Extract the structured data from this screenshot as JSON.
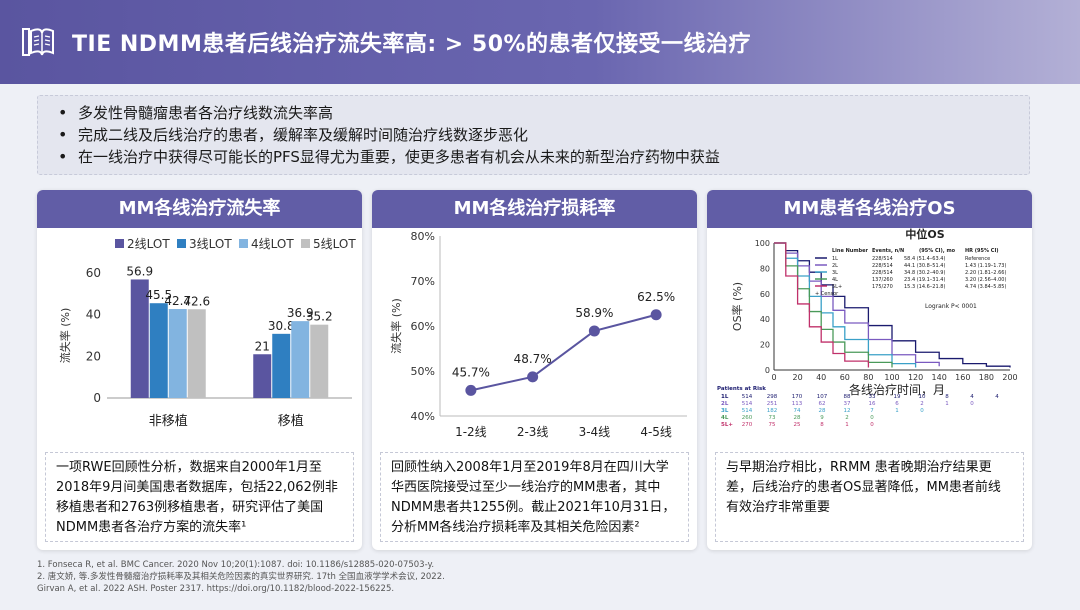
{
  "header": {
    "title": "TIE NDMM患者后线治疗流失率高: > 50%的患者仅接受一线治疗"
  },
  "bullets": [
    "多发性骨髓瘤患者各治疗线数流失率高",
    "完成二线及后线治疗的患者，缓解率及缓解时间随治疗线数逐步恶化",
    "在一线治疗中获得尽可能长的PFS显得尤为重要，使更多患者有机会从未来的新型治疗药物中获益"
  ],
  "cards": [
    {
      "title": "MM各线治疗流失率",
      "text": "一项RWE回顾性分析，数据来自2000年1月至2018年9月间美国患者数据库，包括22,062例非移植患者和2763例移植患者，研究评估了美国NDMM患者各治疗方案的流失率¹"
    },
    {
      "title": "MM各线治疗损耗率",
      "text": "回顾性纳入2008年1月至2019年8月在四川大学华西医院接受过至少一线治疗的MM患者，其中NDMM患者共1255例。截止2021年10月31日，分析MM各线治疗损耗率及其相关危险因素²"
    },
    {
      "title": "MM患者各线治疗OS",
      "text": "与早期治疗相比，RRMM 患者晚期治疗结果更差，后线治疗的患者OS显著降低，MM患者前线有效治疗非常重要"
    }
  ],
  "chart_data": [
    {
      "type": "bar",
      "title": "MM各线治疗流失率",
      "ylabel": "流失率 (%)",
      "ylim": [
        0,
        60
      ],
      "yticks": [
        "0",
        "20",
        "40",
        "60"
      ],
      "categories": [
        "非移植",
        "移植"
      ],
      "series": [
        {
          "name": "2线LOT",
          "color": "#5a55a0",
          "values": [
            56.9,
            21
          ]
        },
        {
          "name": "3线LOT",
          "color": "#2f7fc1",
          "values": [
            45.5,
            30.8
          ]
        },
        {
          "name": "4线LOT",
          "color": "#82b4e0",
          "values": [
            42.7,
            36.9
          ]
        },
        {
          "name": "5线LOT",
          "color": "#c0c0c0",
          "values": [
            42.6,
            35.2
          ]
        }
      ],
      "labels": [
        [
          "56.9",
          "45.5",
          "42.7",
          "42.6"
        ],
        [
          "21",
          "30.8",
          "36.9",
          "35.2"
        ]
      ]
    },
    {
      "type": "line",
      "title": "MM各线治疗损耗率",
      "ylabel": "流失率 (%)",
      "ylim": [
        40,
        80
      ],
      "yticks": [
        "40%",
        "50%",
        "60%",
        "70%",
        "80%"
      ],
      "categories": [
        "1-2线",
        "2-3线",
        "3-4线",
        "4-5线"
      ],
      "values": [
        45.7,
        48.7,
        58.9,
        62.5
      ],
      "labels": [
        "45.7%",
        "48.7%",
        "58.9%",
        "62.5%"
      ],
      "color": "#5a55a0"
    },
    {
      "type": "line",
      "title": "中位OS",
      "ylabel": "OS率 (%)",
      "xlabel": "各线治疗时间，月",
      "xlim": [
        0,
        200
      ],
      "ylim": [
        0,
        100
      ],
      "xticks": [
        "0",
        "20",
        "40",
        "60",
        "80",
        "100",
        "120",
        "140",
        "160",
        "180",
        "200"
      ],
      "yticks": [
        "0",
        "20",
        "40",
        "60",
        "80",
        "100"
      ],
      "logrank": "Logrank P< 0001",
      "legend_header": [
        "Line Number",
        "Events, n/N",
        "(95% CI), mo",
        "HR (95% CI)"
      ],
      "censor_label": "+ Censor",
      "risk_header": "Patients at Risk",
      "series": [
        {
          "name": "1L",
          "color": "#1a1a6e",
          "events": "228/514",
          "median": "58.4 (51.4–63.4)",
          "hr": "Reference",
          "x": [
            0,
            10,
            20,
            30,
            40,
            50,
            60,
            80,
            100,
            120,
            140,
            160,
            180,
            200
          ],
          "y": [
            100,
            94,
            86,
            77,
            67,
            58,
            49,
            35,
            23,
            14,
            9,
            5,
            3,
            2
          ],
          "risk": [
            "514",
            "298",
            "170",
            "107",
            "88",
            "33",
            "19",
            "10",
            "8",
            "4",
            "4"
          ]
        },
        {
          "name": "2L",
          "color": "#7a5ac0",
          "events": "228/514",
          "median": "44.1 (30.8–51.4)",
          "hr": "1.43 (1.19–1.73)",
          "x": [
            0,
            10,
            20,
            30,
            40,
            50,
            60,
            80,
            100,
            120,
            140
          ],
          "y": [
            100,
            92,
            82,
            70,
            58,
            47,
            37,
            24,
            12,
            6,
            3
          ],
          "risk": [
            "514",
            "251",
            "113",
            "62",
            "37",
            "16",
            "6",
            "2",
            "1",
            "0",
            ""
          ]
        },
        {
          "name": "3L",
          "color": "#3aa0c8",
          "events": "228/514",
          "median": "34.8 (30.2–40.9)",
          "hr": "2.20 (1.81–2.66)",
          "x": [
            0,
            10,
            20,
            30,
            40,
            50,
            60,
            80,
            100,
            120
          ],
          "y": [
            100,
            88,
            74,
            58,
            45,
            34,
            24,
            12,
            5,
            2
          ],
          "risk": [
            "514",
            "182",
            "74",
            "28",
            "12",
            "7",
            "1",
            "0",
            "",
            "",
            ""
          ]
        },
        {
          "name": "4L",
          "color": "#4a9a5a",
          "events": "137/260",
          "median": "23.4 (19.1–31.4)",
          "hr": "3.20 (2.56–4.00)",
          "x": [
            0,
            10,
            20,
            30,
            40,
            50,
            60,
            80,
            100
          ],
          "y": [
            100,
            82,
            64,
            46,
            32,
            22,
            14,
            6,
            2
          ],
          "risk": [
            "260",
            "73",
            "28",
            "9",
            "2",
            "0",
            "",
            "",
            "",
            "",
            ""
          ]
        },
        {
          "name": "5L+",
          "color": "#c0306a",
          "events": "175/270",
          "median": "15.3 (14.6–21.8)",
          "hr": "4.74 (3.84–5.85)",
          "x": [
            0,
            10,
            20,
            30,
            40,
            50,
            60,
            80
          ],
          "y": [
            100,
            74,
            52,
            34,
            22,
            13,
            7,
            2
          ],
          "risk": [
            "270",
            "75",
            "25",
            "8",
            "1",
            "0",
            "",
            "",
            "",
            "",
            ""
          ]
        }
      ]
    }
  ],
  "footnotes": [
    "1. Fonseca R, et al. BMC Cancer. 2020 Nov 10;20(1):1087. doi: 10.1186/s12885-020-07503-y.",
    "2. 唐文娇, 等.多发性骨髓瘤治疗损耗率及其相关危险因素的真实世界研究. 17th 全国血液学学术会议, 2022.",
    "Girvan A, et al. 2022 ASH. Poster 2317. https://doi.org/10.1182/blood-2022-156225."
  ],
  "colors": {
    "header": "#5a55a0",
    "card_head": "#615da6"
  }
}
